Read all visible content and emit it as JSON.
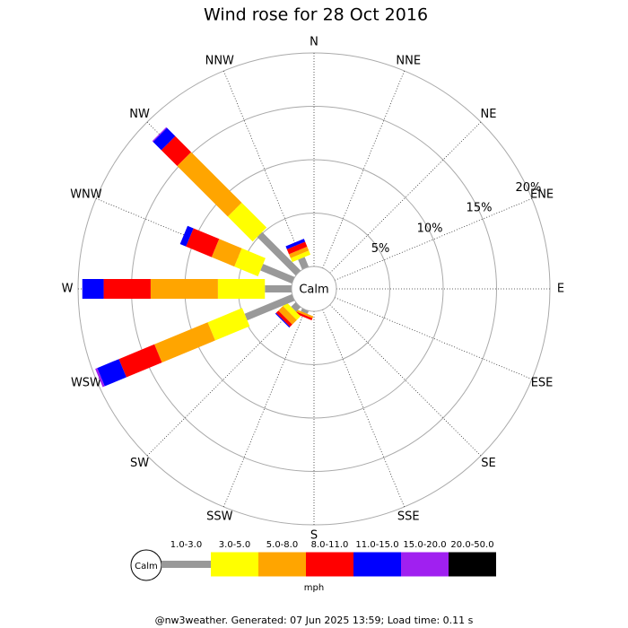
{
  "chart_data": {
    "type": "windrose",
    "title": "Wind rose for 28 Oct 2016",
    "categories": [
      "N",
      "NNE",
      "NE",
      "ENE",
      "E",
      "ESE",
      "SE",
      "SSE",
      "S",
      "SSW",
      "SW",
      "WSW",
      "W",
      "WNW",
      "NW",
      "NNW"
    ],
    "calm_label": "Calm",
    "rlim": [
      0,
      20
    ],
    "rticks": [
      {
        "value": 5,
        "label": "5%"
      },
      {
        "value": 10,
        "label": "10%"
      },
      {
        "value": 15,
        "label": "15%"
      },
      {
        "value": 20,
        "label": "20%"
      }
    ],
    "legend_unit": "mph",
    "series": [
      {
        "name": "1.0-3.0",
        "color": "#999999",
        "values": [
          0,
          0,
          0,
          0,
          0,
          0,
          0,
          0,
          0,
          0.3,
          0.6,
          4.8,
          2.5,
          3.2,
          5.1,
          1.0
        ]
      },
      {
        "name": "3.0-5.0",
        "color": "#ffff00",
        "values": [
          0,
          0,
          0,
          0,
          0,
          0,
          0,
          0,
          0,
          0,
          0.5,
          3.5,
          4.4,
          2.4,
          3.3,
          0.4
        ]
      },
      {
        "name": "5.0-8.0",
        "color": "#ffa500",
        "values": [
          0,
          0,
          0,
          0,
          0,
          0,
          0,
          0,
          0,
          0.2,
          0.6,
          5.4,
          6.3,
          2.3,
          6.7,
          0.4
        ]
      },
      {
        "name": "8.0-11.0",
        "color": "#ff0000",
        "values": [
          0,
          0,
          0,
          0,
          0,
          0,
          0,
          0,
          0,
          0.2,
          0.3,
          3.6,
          4.4,
          2.6,
          2.1,
          0.5
        ]
      },
      {
        "name": "11.0-15.0",
        "color": "#0000ff",
        "values": [
          0,
          0,
          0,
          0,
          0,
          0,
          0,
          0,
          0,
          0,
          0.1,
          2.2,
          2.0,
          0.6,
          1.1,
          0.3
        ]
      },
      {
        "name": "15.0-20.0",
        "color": "#a020f0",
        "values": [
          0,
          0,
          0,
          0,
          0,
          0,
          0,
          0,
          0,
          0,
          0,
          0.2,
          0,
          0,
          0.1,
          0
        ]
      },
      {
        "name": "20.0-50.0",
        "color": "#000000",
        "values": [
          0,
          0,
          0,
          0,
          0,
          0,
          0,
          0,
          0,
          0,
          0,
          0,
          0,
          0,
          0,
          0
        ]
      }
    ],
    "footer": "@nw3weather. Generated: 07 Jun 2025 13:59; Load time: 0.11 s"
  }
}
